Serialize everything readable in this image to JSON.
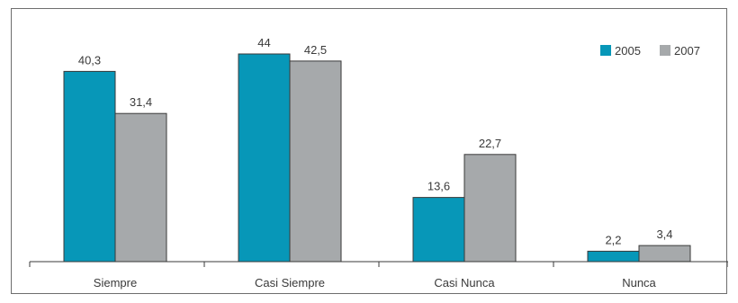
{
  "chart_data": {
    "type": "bar",
    "title": "",
    "xlabel": "",
    "ylabel": "",
    "categories": [
      "Siempre",
      "Casi Siempre",
      "Casi Nunca",
      "Nunca"
    ],
    "series": [
      {
        "name": "2005",
        "color": "#0797b8",
        "values": [
          40.3,
          44,
          13.6,
          2.2
        ],
        "labels": [
          "40,3",
          "44",
          "13,6",
          "2,2"
        ]
      },
      {
        "name": "2007",
        "color": "#a6a9ab",
        "values": [
          31.4,
          42.5,
          22.7,
          3.4
        ],
        "labels": [
          "31,4",
          "42,5",
          "22,7",
          "3,4"
        ]
      }
    ],
    "ylim": [
      0,
      50
    ],
    "grid": false,
    "legend_position": "top-right",
    "data_labels": true
  }
}
